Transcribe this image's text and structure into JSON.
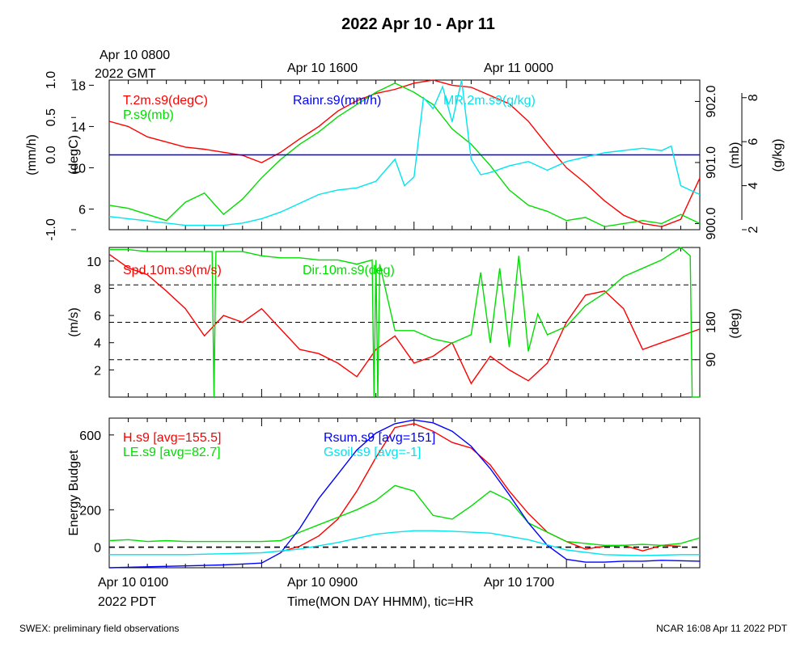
{
  "title": "2022 Apr 10 - Apr 11",
  "top_axis": {
    "start_line1": "Apr 10 0800",
    "start_line2": "2022 GMT",
    "mid": "Apr 10 1600",
    "end": "Apr 11 0000"
  },
  "bottom_axis": {
    "start_line1": "Apr 10 0100",
    "start_line2": "2022 PDT",
    "mid": "Apr 10 0900",
    "end": "Apr 10 1700",
    "xlabel": "Time(MON DAY HHMM), tic=HR"
  },
  "footer": {
    "left": "SWEX: preliminary field observations",
    "right": "NCAR 16:08 Apr 11 2022 PDT"
  },
  "colors": {
    "red": "#ff0000",
    "green": "#00dd00",
    "blue": "#0000ff",
    "cyan": "#00e5ee",
    "black": "#000000"
  },
  "chart_data": [
    {
      "type": "line",
      "panel": "thermo",
      "x_unit": "hours since Apr 10 0100 PDT",
      "xlim": [
        0,
        31
      ],
      "axes": {
        "left_outer": {
          "label": "(mm/h)",
          "ticks": [
            "-1.0",
            "0.0",
            "0.5",
            "1.0"
          ],
          "ylim": [
            -1.0,
            1.0
          ]
        },
        "left_inner": {
          "label": "(degC)",
          "ticks": [
            "6",
            "10",
            "14",
            "18"
          ],
          "ylim": [
            4,
            18.5
          ]
        },
        "right_inner": {
          "label": "(mb)",
          "ticks": [
            "900.0",
            "901.0",
            "902.0"
          ],
          "ylim": [
            899.9,
            902.35
          ]
        },
        "right_outer": {
          "label": "(g/kg)",
          "ticks": [
            "2",
            "4",
            "6",
            "8"
          ],
          "ylim": [
            2,
            8.8
          ]
        }
      },
      "series": [
        {
          "name": "T.2m.s9(degC)",
          "color": "#ff0000",
          "axis": "left_inner",
          "x": [
            0,
            1,
            2,
            3,
            4,
            5,
            6,
            7,
            8,
            9,
            10,
            11,
            12,
            13,
            14,
            15,
            16,
            17,
            18,
            19,
            20,
            21,
            22,
            23,
            24,
            25,
            26,
            27,
            28,
            29,
            30,
            31
          ],
          "y": [
            14.5,
            14,
            13,
            12.5,
            12,
            11.8,
            11.5,
            11.2,
            10.5,
            11.5,
            12.8,
            14,
            15.5,
            16.5,
            17.2,
            17.6,
            18.2,
            18.5,
            18,
            17.8,
            17,
            16.2,
            14.5,
            12.2,
            10,
            8.5,
            6.8,
            5.4,
            4.6,
            4.3,
            5,
            9
          ]
        },
        {
          "name": "P.s9(mb)",
          "color": "#00dd00",
          "axis": "right_inner",
          "x": [
            0,
            1,
            2,
            3,
            4,
            5,
            6,
            7,
            8,
            9,
            10,
            11,
            12,
            13,
            14,
            15,
            16,
            17,
            18,
            19,
            20,
            21,
            22,
            23,
            24,
            25,
            26,
            27,
            28,
            29,
            30,
            31
          ],
          "y": [
            900.3,
            900.25,
            900.15,
            900.05,
            900.35,
            900.5,
            900.15,
            900.4,
            900.75,
            901.05,
            901.3,
            901.5,
            901.75,
            901.95,
            902.15,
            902.3,
            902.15,
            901.95,
            901.55,
            901.3,
            900.95,
            900.55,
            900.3,
            900.2,
            900.05,
            900.1,
            899.95,
            900.0,
            900.05,
            900.0,
            900.15,
            900.0
          ]
        },
        {
          "name": "Rainr.s9(mm/h)",
          "color": "#0000ff",
          "axis": "left_outer",
          "x": [
            0,
            31
          ],
          "y": [
            0,
            0
          ]
        },
        {
          "name": "MR.2m.s9(g/kg)",
          "color": "#00e5ee",
          "axis": "right_outer",
          "x": [
            0,
            1,
            2,
            3,
            4,
            5,
            6,
            7,
            8,
            9,
            10,
            11,
            12,
            13,
            14,
            15,
            15.5,
            16,
            16.5,
            17,
            17.5,
            18,
            18.5,
            19,
            19.5,
            20,
            21,
            22,
            23,
            24,
            25,
            26,
            27,
            28,
            29,
            29.5,
            30,
            31
          ],
          "y": [
            2.6,
            2.5,
            2.4,
            2.3,
            2.2,
            2.2,
            2.2,
            2.3,
            2.5,
            2.8,
            3.2,
            3.6,
            3.8,
            3.9,
            4.2,
            5.2,
            4,
            4.4,
            8.0,
            7.5,
            8.5,
            6.9,
            8.8,
            5.2,
            4.5,
            4.6,
            4.9,
            5.1,
            4.7,
            5.1,
            5.3,
            5.5,
            5.6,
            5.7,
            5.6,
            5.8,
            4.0,
            3.6
          ]
        }
      ]
    },
    {
      "type": "line",
      "panel": "wind",
      "x_unit": "hours since Apr 10 0100 PDT",
      "xlim": [
        0,
        31
      ],
      "axes": {
        "left": {
          "label": "(m/s)",
          "ticks": [
            "2",
            "4",
            "6",
            "8",
            "10"
          ],
          "ylim": [
            0,
            11
          ]
        },
        "right": {
          "label": "(deg)",
          "ticks": [
            "90",
            "180"
          ],
          "ylim": [
            0,
            360
          ]
        }
      },
      "reference_lines": [
        2.75,
        5.5,
        8.25
      ],
      "series": [
        {
          "name": "Spd.10m.s9(m/s)",
          "color": "#ff0000",
          "axis": "left",
          "x": [
            0,
            1,
            2,
            3,
            4,
            5,
            6,
            7,
            8,
            9,
            10,
            11,
            12,
            13,
            14,
            15,
            16,
            17,
            18,
            19,
            20,
            21,
            22,
            23,
            24,
            25,
            26,
            27,
            28,
            29,
            30,
            31
          ],
          "y": [
            10.5,
            9.5,
            9,
            7.8,
            6.5,
            4.5,
            6,
            5.5,
            6.5,
            5,
            3.5,
            3.2,
            2.5,
            1.5,
            3.5,
            4.5,
            2.5,
            3,
            4,
            1,
            3,
            2,
            1.2,
            2.5,
            5.5,
            7.5,
            7.8,
            6.5,
            3.5,
            4,
            4.5,
            5
          ]
        },
        {
          "name": "Dir.10m.s9(deg)",
          "color": "#00dd00",
          "axis": "right",
          "x": [
            0,
            1,
            2,
            3,
            4,
            5,
            5.4,
            5.5,
            5.6,
            6,
            7,
            8,
            9,
            10,
            11,
            12,
            13,
            13.8,
            13.9,
            14,
            14.1,
            14.2,
            15,
            16,
            17,
            18,
            19,
            19.5,
            20,
            20.5,
            21,
            21.5,
            22,
            22.5,
            23,
            24,
            25,
            26,
            27,
            28,
            29,
            30,
            30.5,
            30.6,
            31
          ],
          "y": [
            355,
            355,
            350,
            350,
            350,
            350,
            350,
            0,
            350,
            350,
            350,
            340,
            335,
            335,
            330,
            330,
            320,
            330,
            0,
            330,
            0,
            320,
            160,
            160,
            140,
            130,
            150,
            300,
            130,
            310,
            120,
            340,
            110,
            200,
            150,
            170,
            220,
            250,
            290,
            310,
            330,
            360,
            340,
            0,
            0
          ]
        }
      ]
    },
    {
      "type": "line",
      "panel": "energy",
      "x_unit": "hours since Apr 10 0100 PDT",
      "xlim": [
        0,
        31
      ],
      "axes": {
        "left": {
          "label": "Energy Budget",
          "ticks": [
            "0",
            "200",
            "600"
          ],
          "ylim": [
            -110,
            690
          ]
        }
      },
      "reference_lines": [
        0
      ],
      "series": [
        {
          "name": "H.s9 [avg=155.5]",
          "color": "#ff0000",
          "x": [
            9,
            10,
            11,
            12,
            13,
            14,
            15,
            16,
            17,
            18,
            19,
            20,
            21,
            22,
            23,
            24,
            25,
            26,
            27,
            28,
            29,
            30
          ],
          "y": [
            -25,
            5,
            60,
            150,
            300,
            480,
            640,
            660,
            620,
            560,
            530,
            440,
            300,
            180,
            80,
            30,
            -10,
            5,
            10,
            -20,
            10,
            5
          ]
        },
        {
          "name": "LE.s9 [avg=82.7]",
          "color": "#00dd00",
          "x": [
            0,
            1,
            2,
            3,
            4,
            5,
            6,
            7,
            8,
            9,
            10,
            11,
            12,
            13,
            14,
            15,
            16,
            17,
            18,
            19,
            20,
            21,
            22,
            23,
            24,
            25,
            26,
            27,
            28,
            29,
            30,
            31
          ],
          "y": [
            35,
            40,
            30,
            35,
            30,
            30,
            30,
            30,
            30,
            35,
            80,
            120,
            160,
            200,
            250,
            330,
            300,
            170,
            150,
            220,
            300,
            250,
            130,
            80,
            30,
            20,
            10,
            10,
            15,
            10,
            20,
            50
          ]
        },
        {
          "name": "Rsum.s9 [avg=151]",
          "color": "#0000ff",
          "x": [
            0,
            2,
            4,
            6,
            7,
            8,
            9,
            10,
            11,
            12,
            13,
            14,
            15,
            16,
            17,
            18,
            19,
            20,
            21,
            22,
            23,
            24,
            25,
            26,
            27,
            28,
            29,
            31
          ],
          "y": [
            -110,
            -105,
            -100,
            -95,
            -90,
            -85,
            -30,
            100,
            260,
            390,
            520,
            610,
            660,
            680,
            665,
            620,
            540,
            420,
            280,
            130,
            10,
            -65,
            -80,
            -80,
            -75,
            -75,
            -70,
            -75
          ]
        },
        {
          "name": "Gsoil.s9 [avg=-1]",
          "color": "#00e5ee",
          "x": [
            0,
            2,
            4,
            6,
            8,
            10,
            12,
            14,
            15,
            16,
            17,
            18,
            20,
            22,
            24,
            26,
            28,
            30,
            31
          ],
          "y": [
            -40,
            -40,
            -40,
            -35,
            -30,
            -10,
            25,
            70,
            80,
            88,
            88,
            85,
            75,
            40,
            -15,
            -40,
            -45,
            -40,
            -40
          ]
        }
      ]
    }
  ]
}
